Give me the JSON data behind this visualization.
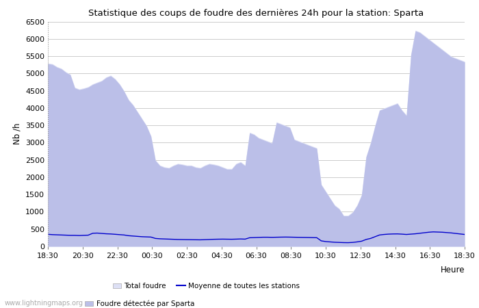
{
  "title": "Statistique des coups de foudre des dernières 24h pour la station: Sparta",
  "xlabel": "Heure",
  "ylabel": "Nb /h",
  "watermark": "www.lightningmaps.org",
  "ylim": [
    0,
    6500
  ],
  "yticks": [
    0,
    500,
    1000,
    1500,
    2000,
    2500,
    3000,
    3500,
    4000,
    4500,
    5000,
    5500,
    6000,
    6500
  ],
  "xtick_labels": [
    "18:30",
    "20:30",
    "22:30",
    "00:30",
    "02:30",
    "04:30",
    "06:30",
    "08:30",
    "10:30",
    "12:30",
    "14:30",
    "16:30",
    "18:30"
  ],
  "color_total": "#dde0f5",
  "color_sparta": "#bbbfe8",
  "color_line": "#0000cc",
  "bg_color": "#ffffff",
  "grid_color": "#cccccc",
  "total_foudre": [
    5300,
    5280,
    5200,
    5150,
    5050,
    4980,
    4600,
    4550,
    4580,
    4620,
    4700,
    4750,
    4800,
    4900,
    4950,
    4850,
    4700,
    4500,
    4250,
    4100,
    3900,
    3700,
    3500,
    3200,
    2500,
    2350,
    2300,
    2280,
    2350,
    2400,
    2380,
    2350,
    2350,
    2300,
    2280,
    2350,
    2400,
    2380,
    2350,
    2300,
    2250,
    2250,
    2400,
    2450,
    2350,
    3300,
    3250,
    3150,
    3100,
    3050,
    3000,
    3600,
    3550,
    3500,
    3450,
    3100,
    3050,
    3000,
    2950,
    2900,
    2850,
    1800,
    1600,
    1400,
    1200,
    1100,
    900,
    900,
    1000,
    1200,
    1500,
    2600,
    3000,
    3500,
    3950,
    4000,
    4050,
    4100,
    4150,
    3950,
    3800,
    5550,
    6250,
    6200,
    6100,
    6000,
    5900,
    5800,
    5700,
    5600,
    5500,
    5450,
    5400,
    5350
  ],
  "sparta_foudre": [
    5280,
    5260,
    5180,
    5130,
    5030,
    4960,
    4580,
    4530,
    4560,
    4600,
    4680,
    4730,
    4780,
    4880,
    4930,
    4830,
    4680,
    4480,
    4230,
    4080,
    3880,
    3680,
    3480,
    3180,
    2480,
    2330,
    2280,
    2260,
    2330,
    2380,
    2360,
    2330,
    2330,
    2280,
    2260,
    2330,
    2380,
    2360,
    2330,
    2280,
    2230,
    2230,
    2380,
    2430,
    2330,
    3280,
    3230,
    3130,
    3080,
    3030,
    2980,
    3580,
    3530,
    3480,
    3430,
    3080,
    3030,
    2980,
    2930,
    2880,
    2830,
    1780,
    1580,
    1380,
    1180,
    1080,
    880,
    880,
    980,
    1180,
    1480,
    2580,
    2980,
    3480,
    3930,
    3980,
    4030,
    4080,
    4130,
    3930,
    3780,
    5530,
    6230,
    6180,
    6080,
    5980,
    5880,
    5780,
    5680,
    5580,
    5480,
    5430,
    5380,
    5330
  ],
  "moyenne": [
    350,
    340,
    335,
    330,
    325,
    320,
    320,
    315,
    320,
    325,
    380,
    385,
    375,
    365,
    360,
    350,
    340,
    330,
    310,
    300,
    290,
    280,
    275,
    270,
    230,
    220,
    215,
    210,
    205,
    200,
    198,
    196,
    194,
    192,
    190,
    195,
    200,
    205,
    208,
    210,
    208,
    206,
    210,
    215,
    210,
    250,
    255,
    260,
    265,
    265,
    262,
    265,
    268,
    270,
    268,
    265,
    262,
    260,
    258,
    255,
    252,
    160,
    140,
    130,
    120,
    115,
    110,
    108,
    115,
    130,
    150,
    200,
    230,
    280,
    330,
    345,
    355,
    360,
    362,
    355,
    345,
    355,
    365,
    380,
    395,
    410,
    420,
    415,
    410,
    400,
    390,
    375,
    360,
    345
  ]
}
